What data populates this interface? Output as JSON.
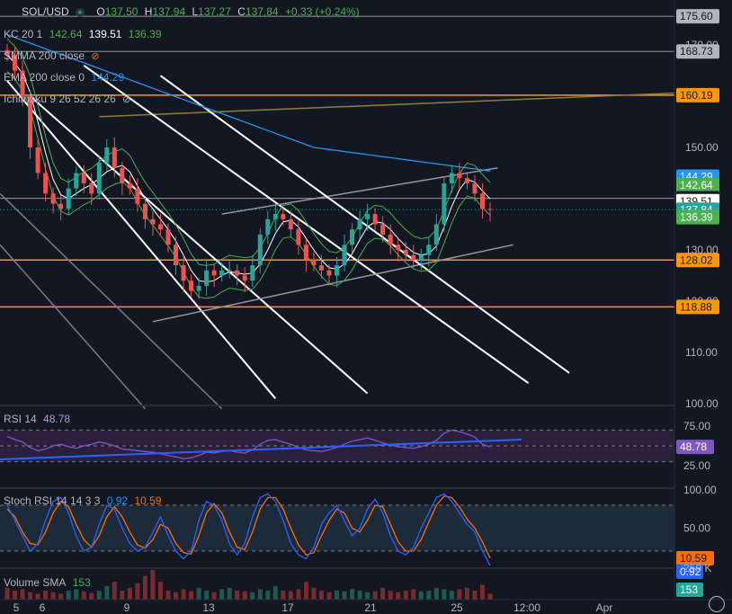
{
  "symbol": "SOL/USD",
  "ohlc": {
    "o_label": "O",
    "o": "137.50",
    "h_label": "H",
    "h": "137.94",
    "l_label": "L",
    "l": "137.27",
    "c_label": "C",
    "c": "137.84",
    "change": "+0.33 (+0.24%)"
  },
  "indicators": {
    "kc": {
      "label": "KC 20 1",
      "upper": "142.64",
      "mid": "139.51",
      "lower": "136.39"
    },
    "smma": {
      "label": "SMMA 200 close"
    },
    "ema": {
      "label": "EMA 200 close 0",
      "value": "144.29"
    },
    "ichimoku": {
      "label": "Ichimoku 9 26 52 26 26"
    },
    "rsi": {
      "label": "RSI 14",
      "value": "48.78"
    },
    "stoch": {
      "label": "Stoch RSI 14 14 3 3",
      "k": "0.92",
      "d": "10.59"
    },
    "volume": {
      "label": "Volume SMA",
      "value": "153"
    }
  },
  "price_axis": {
    "ticks": [
      "170.00",
      "150.00",
      "140.00",
      "130.00",
      "120.00",
      "110.00",
      "100.00"
    ],
    "labels": [
      {
        "text": "175.60",
        "price": 175.6,
        "color": "#b2b5be",
        "fg": "#131722"
      },
      {
        "text": "168.73",
        "price": 168.73,
        "color": "#b2b5be",
        "fg": "#131722"
      },
      {
        "text": "160.19",
        "price": 160.19,
        "color": "#ff9800",
        "fg": "#131722"
      },
      {
        "text": "144.29",
        "price": 144.29,
        "color": "#2196f3",
        "fg": "#ffffff"
      },
      {
        "text": "142.64",
        "price": 142.64,
        "color": "#4caf50",
        "fg": "#ffffff"
      },
      {
        "text": "140.06",
        "price": 140.06,
        "color": "#131722",
        "fg": "#ffffff"
      },
      {
        "text": "139.51",
        "price": 139.51,
        "color": "#ffffff",
        "fg": "#131722"
      },
      {
        "text": "137.84",
        "price": 137.84,
        "color": "#26a69a",
        "fg": "#ffffff"
      },
      {
        "text": "136.39",
        "price": 136.39,
        "color": "#4caf50",
        "fg": "#ffffff"
      },
      {
        "text": "128.02",
        "price": 128.02,
        "color": "#ff9800",
        "fg": "#131722"
      },
      {
        "text": "118.88",
        "price": 118.88,
        "color": "#ff9800",
        "fg": "#131722"
      }
    ]
  },
  "rsi_axis": {
    "ticks": [
      "75.00",
      "25.00"
    ],
    "current": "48.78"
  },
  "stoch_axis": {
    "ticks": [
      "100.00",
      "50.00"
    ],
    "d": "10.59",
    "k": "0.92"
  },
  "volume_axis": {
    "tick": "250 K",
    "current": "153"
  },
  "time_axis": {
    "labels": [
      "5",
      "6",
      "9",
      "13",
      "17",
      "21",
      "25",
      "12:00",
      "Apr"
    ]
  },
  "chart_data": {
    "type": "candlestick",
    "title": "SOL/USD",
    "ylim": [
      99,
      181
    ],
    "horizontal_levels": [
      175.6,
      168.73,
      160.19,
      140.06,
      128.02,
      118.88
    ],
    "closes": [
      168,
      165,
      160,
      150,
      145,
      141,
      139,
      138,
      142,
      145,
      143,
      141,
      147,
      150,
      146,
      143,
      142,
      139,
      136,
      135,
      134,
      131,
      127,
      124,
      122,
      123,
      126,
      125,
      126,
      126,
      125,
      124,
      127,
      133,
      136,
      137,
      136,
      134,
      131,
      128,
      127,
      126,
      125,
      127,
      131,
      134,
      136,
      137,
      135,
      133,
      131,
      130,
      129,
      128,
      129,
      131,
      135,
      143,
      145,
      144,
      143,
      141,
      138,
      137.84
    ],
    "channels": [
      {
        "name": "descending-white-1",
        "color": "#ffffff",
        "p1": [
          0,
          163
        ],
        "p2": [
          35,
          101
        ]
      },
      {
        "name": "descending-white-2",
        "color": "#ffffff",
        "p1": [
          3,
          160
        ],
        "p2": [
          47,
          102
        ]
      },
      {
        "name": "descending-white-3",
        "color": "#ffffff",
        "p1": [
          10,
          166
        ],
        "p2": [
          68,
          104
        ]
      },
      {
        "name": "ascending-gray-upper",
        "color": "#9598a1",
        "p1": [
          28,
          137
        ],
        "p2": [
          64,
          146
        ]
      },
      {
        "name": "ascending-gray-lower",
        "color": "#9598a1",
        "p1": [
          19,
          116
        ],
        "p2": [
          66,
          131
        ]
      }
    ],
    "rsi": [
      62,
      58,
      55,
      48,
      44,
      46,
      50,
      52,
      49,
      47,
      50,
      52,
      55,
      53,
      50,
      46,
      45,
      44,
      43,
      42,
      40,
      38,
      36,
      34,
      35,
      38,
      42,
      41,
      43,
      44,
      42,
      41,
      45,
      52,
      57,
      58,
      55,
      52,
      48,
      45,
      44,
      43,
      45,
      48,
      52,
      56,
      58,
      60,
      57,
      54,
      51,
      49,
      48,
      47,
      49,
      52,
      57,
      66,
      70,
      68,
      65,
      61,
      52,
      48.78
    ],
    "stoch_k": [
      80,
      60,
      40,
      20,
      30,
      60,
      85,
      90,
      70,
      40,
      20,
      25,
      55,
      80,
      75,
      50,
      30,
      20,
      25,
      45,
      65,
      40,
      20,
      10,
      20,
      60,
      85,
      80,
      60,
      30,
      15,
      30,
      65,
      90,
      95,
      85,
      60,
      30,
      15,
      10,
      25,
      55,
      70,
      80,
      60,
      40,
      50,
      75,
      88,
      70,
      40,
      20,
      15,
      25,
      50,
      70,
      90,
      95,
      85,
      70,
      55,
      45,
      20,
      0.92
    ],
    "stoch_d": [
      75,
      65,
      45,
      30,
      28,
      45,
      70,
      85,
      78,
      55,
      35,
      25,
      40,
      65,
      78,
      65,
      45,
      28,
      24,
      35,
      55,
      50,
      30,
      18,
      16,
      40,
      70,
      82,
      70,
      45,
      25,
      22,
      45,
      75,
      90,
      90,
      75,
      50,
      28,
      15,
      18,
      40,
      60,
      75,
      70,
      50,
      45,
      60,
      80,
      78,
      55,
      32,
      20,
      20,
      35,
      58,
      80,
      92,
      90,
      78,
      62,
      50,
      32,
      10.59
    ],
    "volume": [
      40,
      30,
      35,
      25,
      20,
      30,
      25,
      20,
      30,
      35,
      28,
      22,
      30,
      45,
      60,
      30,
      40,
      55,
      80,
      100,
      60,
      30,
      25,
      35,
      28,
      40,
      30,
      25,
      35,
      40,
      30,
      28,
      25,
      35,
      30,
      45,
      30,
      28,
      35,
      60,
      40,
      30,
      25,
      30,
      28,
      35,
      30,
      25,
      28,
      40,
      30,
      25,
      30,
      35,
      28,
      30,
      40,
      35,
      30,
      35,
      40,
      30,
      50,
      20
    ]
  }
}
